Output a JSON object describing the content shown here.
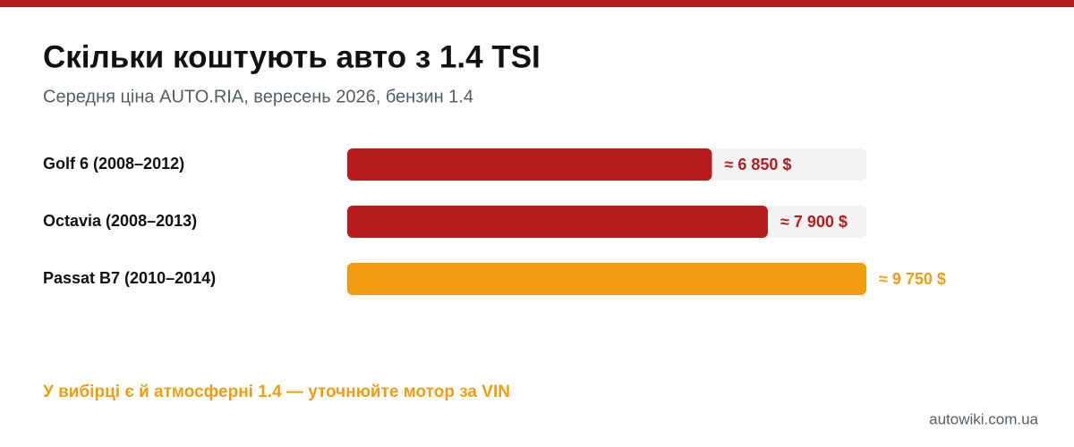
{
  "chart_data": {
    "type": "bar",
    "orientation": "horizontal",
    "title": "Скільки коштують авто з 1.4 TSI",
    "subtitle": "Середня ціна AUTO.RIA, вересень 2026, бензин 1.4",
    "categories": [
      "Golf 6 (2008–2012)",
      "Octavia (2008–2013)",
      "Passat B7 (2010–2014)"
    ],
    "values": [
      6850,
      7900,
      9750
    ],
    "value_labels": [
      "≈ 6 850 $",
      "≈ 7 900 $",
      "≈ 9 750 $"
    ],
    "colors": [
      "#b71c1c",
      "#b71c1c",
      "#f29d0f"
    ],
    "xlim": [
      0,
      9750
    ],
    "annotation": "У вибірці є й атмосферні 1.4 — уточнюйте мотор за VIN",
    "source": "autowiki.com.ua"
  }
}
